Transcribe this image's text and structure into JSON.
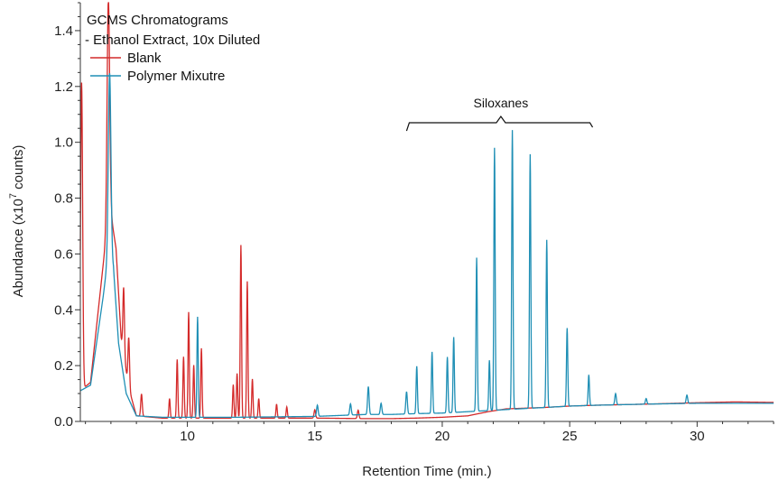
{
  "chart_data": {
    "type": "line",
    "title": "GCMS Chromatograms",
    "subtitle": "- Ethanol Extract, 10x Diluted",
    "xlabel": "Retention Time (min.)",
    "ylabel_prefix": "Abundance (x10",
    "ylabel_exp": "7",
    "ylabel_suffix": " counts)",
    "xlim": [
      5.8,
      33.0
    ],
    "ylim": [
      0,
      1.5
    ],
    "x_ticks": [
      10,
      15,
      20,
      25,
      30
    ],
    "x_tick_labels": [
      "10",
      "15",
      "20",
      "25",
      "30"
    ],
    "y_ticks": [
      0.0,
      0.2,
      0.4,
      0.6,
      0.8,
      1.0,
      1.2,
      1.4
    ],
    "y_tick_labels": [
      "0.0",
      "0.2",
      "0.4",
      "0.6",
      "0.8",
      "1.0",
      "1.2",
      "1.4"
    ],
    "grid": false,
    "legend_position": "top-left",
    "annotation": {
      "label": "Siloxanes",
      "x_start": 18.6,
      "x_end": 25.9,
      "x_mid": 22.3,
      "y": 1.07
    },
    "series": [
      {
        "name": "Blank",
        "color": "#d42a2a",
        "baseline": [
          [
            5.8,
            0.11
          ],
          [
            6.2,
            0.14
          ],
          [
            6.8,
            0.65
          ],
          [
            7.0,
            0.74
          ],
          [
            7.2,
            0.62
          ],
          [
            7.4,
            0.3
          ],
          [
            7.7,
            0.12
          ],
          [
            8.0,
            0.02
          ],
          [
            9,
            0.012
          ],
          [
            12,
            0.012
          ],
          [
            15,
            0.012
          ],
          [
            17,
            0.01
          ],
          [
            18,
            0.01
          ],
          [
            19,
            0.012
          ],
          [
            20,
            0.015
          ],
          [
            21,
            0.02
          ],
          [
            21.8,
            0.035
          ],
          [
            22.5,
            0.045
          ],
          [
            24,
            0.05
          ],
          [
            25,
            0.055
          ],
          [
            26,
            0.058
          ],
          [
            28,
            0.062
          ],
          [
            30,
            0.067
          ],
          [
            31.5,
            0.07
          ],
          [
            33,
            0.068
          ]
        ],
        "peaks": [
          [
            5.85,
            1.1,
            0.04
          ],
          [
            6.9,
            0.82,
            0.05
          ],
          [
            7.5,
            0.24,
            0.03
          ],
          [
            7.7,
            0.18,
            0.03
          ],
          [
            8.2,
            0.08,
            0.03
          ],
          [
            9.3,
            0.07,
            0.025
          ],
          [
            9.6,
            0.21,
            0.025
          ],
          [
            9.85,
            0.22,
            0.025
          ],
          [
            10.05,
            0.38,
            0.025
          ],
          [
            10.25,
            0.19,
            0.025
          ],
          [
            10.55,
            0.25,
            0.025
          ],
          [
            11.8,
            0.12,
            0.025
          ],
          [
            11.95,
            0.16,
            0.025
          ],
          [
            12.1,
            0.62,
            0.025
          ],
          [
            12.35,
            0.49,
            0.025
          ],
          [
            12.55,
            0.14,
            0.025
          ],
          [
            12.8,
            0.07,
            0.025
          ],
          [
            13.5,
            0.05,
            0.025
          ],
          [
            13.9,
            0.04,
            0.025
          ],
          [
            15.0,
            0.03,
            0.03
          ],
          [
            16.7,
            0.03,
            0.03
          ]
        ]
      },
      {
        "name": "Polymer Mixutre",
        "color": "#1f8fb5",
        "baseline": [
          [
            5.8,
            0.11
          ],
          [
            6.2,
            0.13
          ],
          [
            6.7,
            0.45
          ],
          [
            6.9,
            0.6
          ],
          [
            7.1,
            0.55
          ],
          [
            7.3,
            0.28
          ],
          [
            7.6,
            0.1
          ],
          [
            8.0,
            0.02
          ],
          [
            9,
            0.015
          ],
          [
            12,
            0.015
          ],
          [
            15,
            0.018
          ],
          [
            17,
            0.025
          ],
          [
            18,
            0.025
          ],
          [
            19,
            0.028
          ],
          [
            20,
            0.03
          ],
          [
            21,
            0.035
          ],
          [
            22,
            0.04
          ],
          [
            23,
            0.045
          ],
          [
            24,
            0.05
          ],
          [
            25,
            0.055
          ],
          [
            26,
            0.058
          ],
          [
            28,
            0.062
          ],
          [
            30,
            0.065
          ],
          [
            33,
            0.065
          ]
        ],
        "peaks": [
          [
            6.95,
            0.66,
            0.05
          ],
          [
            10.4,
            0.36,
            0.025
          ],
          [
            15.1,
            0.04,
            0.03
          ],
          [
            16.4,
            0.04,
            0.03
          ],
          [
            17.1,
            0.1,
            0.03
          ],
          [
            17.6,
            0.04,
            0.03
          ],
          [
            18.6,
            0.08,
            0.03
          ],
          [
            19.0,
            0.17,
            0.025
          ],
          [
            19.6,
            0.22,
            0.025
          ],
          [
            20.2,
            0.2,
            0.025
          ],
          [
            20.45,
            0.27,
            0.025
          ],
          [
            21.35,
            0.55,
            0.025
          ],
          [
            21.85,
            0.18,
            0.025
          ],
          [
            22.05,
            0.94,
            0.025
          ],
          [
            22.75,
            1.0,
            0.025
          ],
          [
            23.45,
            0.91,
            0.025
          ],
          [
            24.1,
            0.6,
            0.025
          ],
          [
            24.9,
            0.28,
            0.025
          ],
          [
            25.75,
            0.11,
            0.025
          ],
          [
            26.8,
            0.04,
            0.03
          ],
          [
            28.0,
            0.02,
            0.03
          ],
          [
            29.6,
            0.03,
            0.03
          ]
        ]
      }
    ]
  }
}
